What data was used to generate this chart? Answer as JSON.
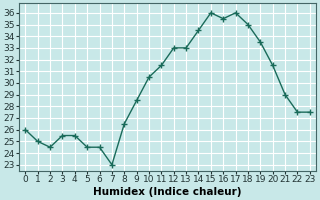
{
  "x": [
    0,
    1,
    2,
    3,
    4,
    5,
    6,
    7,
    8,
    9,
    10,
    11,
    12,
    13,
    14,
    15,
    16,
    17,
    18,
    19,
    20,
    21,
    22,
    23
  ],
  "y": [
    26,
    25,
    24.5,
    25.5,
    25.5,
    24.5,
    24.5,
    23,
    26.5,
    28.5,
    30.5,
    31.5,
    33,
    33,
    34.5,
    36,
    35.5,
    36,
    35,
    33.5,
    31.5,
    29,
    27.5,
    27.5
  ],
  "line_color": "#1a6b5a",
  "marker": "+",
  "marker_size": 4,
  "linewidth": 1.0,
  "bg_color": "#c8e8e8",
  "grid_color": "#b0d8d8",
  "xlabel": "Humidex (Indice chaleur)",
  "ylabel_ticks": [
    23,
    24,
    25,
    26,
    27,
    28,
    29,
    30,
    31,
    32,
    33,
    34,
    35,
    36
  ],
  "ylim": [
    22.5,
    36.8
  ],
  "xlim": [
    -0.5,
    23.5
  ],
  "tick_fontsize": 6.5,
  "xlabel_fontsize": 7.5
}
